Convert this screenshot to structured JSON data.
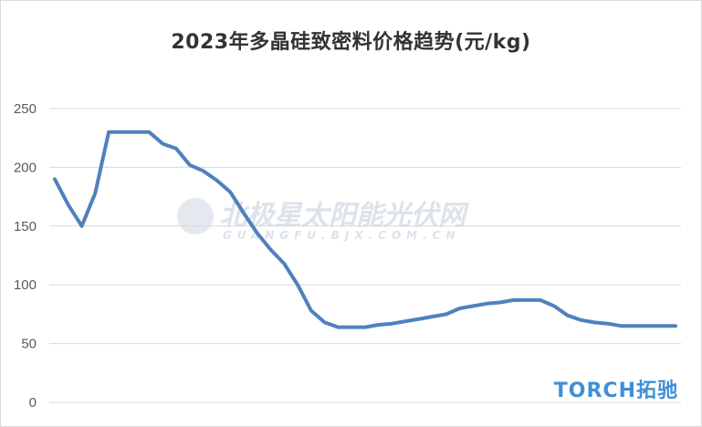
{
  "chart_data": {
    "type": "line",
    "title": "2023年多晶硅致密料价格趋势(元/kg)",
    "xlabel": "",
    "ylabel": "",
    "ylim": [
      0,
      250
    ],
    "yticks": [
      0,
      50,
      100,
      150,
      200,
      250
    ],
    "grid": true,
    "legend": "none",
    "series": [
      {
        "color": "#4f81bd",
        "values": [
          190,
          168,
          150,
          178,
          230,
          230,
          230,
          230,
          220,
          216,
          202,
          197,
          189,
          179,
          161,
          144,
          130,
          118,
          100,
          78,
          68,
          64,
          64,
          64,
          66,
          67,
          69,
          71,
          73,
          75,
          80,
          82,
          84,
          85,
          87,
          87,
          87,
          82,
          74,
          70,
          68,
          67,
          65,
          65,
          65,
          65,
          65
        ]
      }
    ]
  },
  "watermark": {
    "text": "北极星太阳能光伏网",
    "subtext": "GUANGFU.BJX.COM.CN"
  },
  "brand": {
    "text": "TORCH拓驰",
    "color": "#3f8fd6"
  }
}
